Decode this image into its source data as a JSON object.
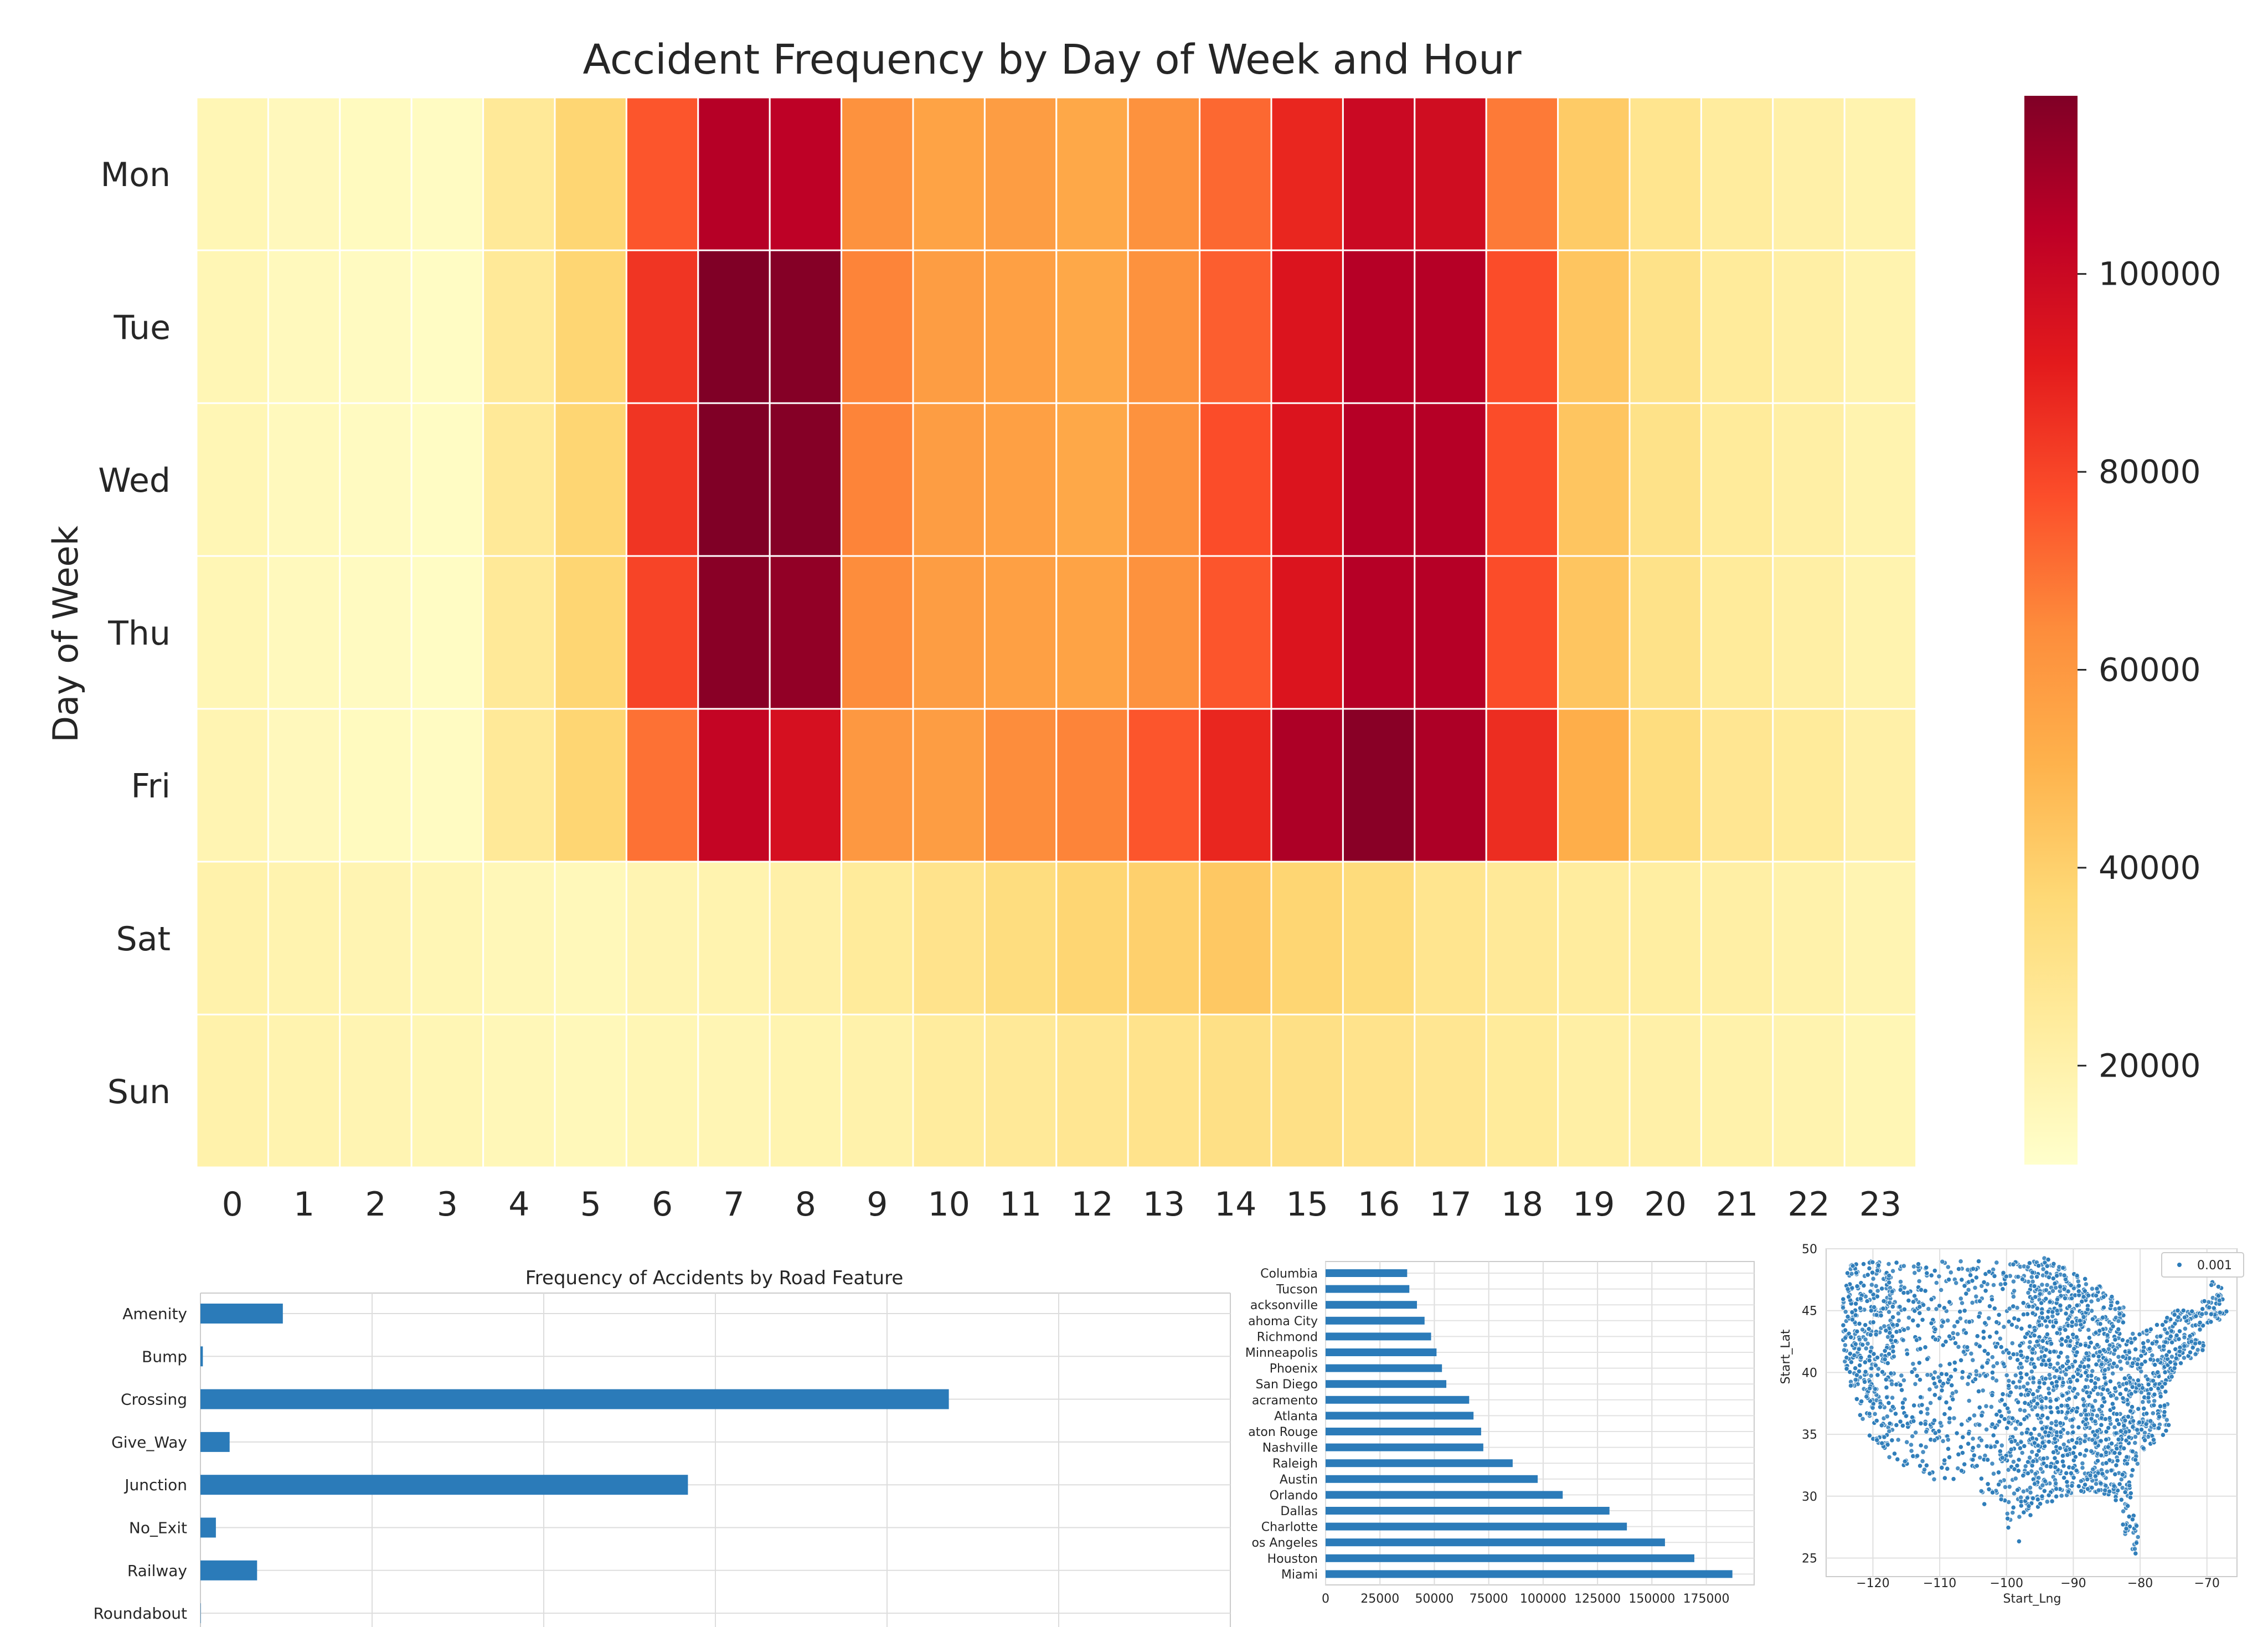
{
  "chart_data": [
    {
      "type": "heatmap",
      "title": "Accident Frequency by Day of Week and Hour",
      "xlabel": "",
      "ylabel": "Day of Week",
      "x": [
        "0",
        "1",
        "2",
        "3",
        "4",
        "5",
        "6",
        "7",
        "8",
        "9",
        "10",
        "11",
        "12",
        "13",
        "14",
        "15",
        "16",
        "17",
        "18",
        "19",
        "20",
        "21",
        "22",
        "23"
      ],
      "y": [
        "Mon",
        "Tue",
        "Wed",
        "Thu",
        "Fri",
        "Sat",
        "Sun"
      ],
      "values": [
        [
          17000,
          15000,
          14000,
          13000,
          26000,
          38000,
          76000,
          106000,
          104000,
          62000,
          56000,
          58000,
          54000,
          62000,
          72000,
          88000,
          100000,
          98000,
          68000,
          42000,
          29000,
          24000,
          21000,
          19000
        ],
        [
          17000,
          14500,
          13500,
          12500,
          26000,
          38000,
          84000,
          118000,
          117000,
          66000,
          58000,
          57000,
          54000,
          62000,
          74000,
          94000,
          106000,
          106000,
          78000,
          44000,
          31000,
          25000,
          22000,
          19000
        ],
        [
          17000,
          14500,
          13500,
          12500,
          26000,
          38000,
          84000,
          118000,
          117000,
          66000,
          58000,
          57000,
          54000,
          62000,
          78000,
          94000,
          106000,
          106000,
          78000,
          44000,
          31000,
          25000,
          22000,
          19000
        ],
        [
          17000,
          14500,
          13500,
          12500,
          26000,
          38000,
          80000,
          116000,
          114000,
          64000,
          58000,
          57000,
          56000,
          62000,
          76000,
          94000,
          106000,
          106000,
          78000,
          44000,
          31000,
          25000,
          22000,
          19000
        ],
        [
          18000,
          15000,
          14000,
          13000,
          26000,
          38000,
          70000,
          102000,
          96000,
          60000,
          58000,
          64000,
          66000,
          76000,
          88000,
          108000,
          116000,
          108000,
          86000,
          52000,
          34000,
          28000,
          25000,
          21000
        ],
        [
          20000,
          19000,
          18000,
          17000,
          16000,
          15500,
          18000,
          19000,
          21000,
          25000,
          30000,
          34000,
          38000,
          40000,
          43000,
          38000,
          35000,
          29000,
          26000,
          24000,
          23000,
          22000,
          20000,
          18000
        ],
        [
          20000,
          19000,
          18000,
          17000,
          16000,
          15500,
          17000,
          17500,
          18500,
          20000,
          24000,
          26000,
          28000,
          30000,
          32000,
          32000,
          30000,
          28000,
          25000,
          22000,
          21000,
          20000,
          19000,
          17000
        ]
      ],
      "colorbar": {
        "min": 10000,
        "max": 118000,
        "ticks": [
          "20000",
          "40000",
          "60000",
          "80000",
          "100000"
        ],
        "tick_values": [
          20000,
          40000,
          60000,
          80000,
          100000
        ],
        "colormap": "YlOrRd"
      }
    },
    {
      "type": "bar",
      "orientation": "horizontal",
      "title": "Frequency of Accidents by Road Feature",
      "categories": [
        "Amenity",
        "Bump",
        "Crossing",
        "Give_Way",
        "Junction",
        "No_Exit",
        "Railway",
        "Roundabout"
      ],
      "values": [
        24000,
        700,
        218000,
        8500,
        142000,
        4500,
        16500,
        100
      ],
      "xlim": [
        0,
        300000
      ],
      "color": "#2b7bb9"
    },
    {
      "type": "bar",
      "orientation": "horizontal",
      "title": "",
      "categories": [
        "Columbia",
        "Tucson",
        "acksonville",
        "ahoma City",
        "Richmond",
        "Minneapolis",
        "Phoenix",
        "San Diego",
        "acramento",
        "Atlanta",
        "aton Rouge",
        "Nashville",
        "Raleigh",
        "Austin",
        "Orlando",
        "Dallas",
        "Charlotte",
        "os Angeles",
        "Houston",
        "Miami"
      ],
      "values": [
        37500,
        38500,
        42000,
        45500,
        48500,
        51000,
        53500,
        55500,
        66000,
        68000,
        71500,
        72500,
        86000,
        97500,
        109000,
        130500,
        138500,
        156000,
        169500,
        187000
      ],
      "xticks": [
        "0",
        "25000",
        "50000",
        "75000",
        "100000",
        "125000",
        "150000",
        "175000"
      ],
      "xtick_values": [
        0,
        25000,
        50000,
        75000,
        100000,
        125000,
        150000,
        175000
      ],
      "xlim": [
        0,
        197000
      ],
      "color": "#2b7bb9"
    },
    {
      "type": "scatter",
      "title": "",
      "xlabel": "Start_Lng",
      "ylabel": "Start_Lat",
      "xticks": [
        "−120",
        "−110",
        "−100",
        "−90",
        "−80",
        "−70"
      ],
      "xtick_values": [
        -120,
        -110,
        -100,
        -90,
        -80,
        -70
      ],
      "yticks": [
        "25",
        "30",
        "35",
        "40",
        "45",
        "50"
      ],
      "ytick_values": [
        25,
        30,
        35,
        40,
        45,
        50
      ],
      "xlim": [
        -127,
        -65.5
      ],
      "ylim": [
        23.5,
        50
      ],
      "legend": "0.001",
      "legend_position": "top-right",
      "color": "#2b7bb9",
      "description": "Dense point cloud of accident start locations covering the contiguous United States"
    }
  ]
}
